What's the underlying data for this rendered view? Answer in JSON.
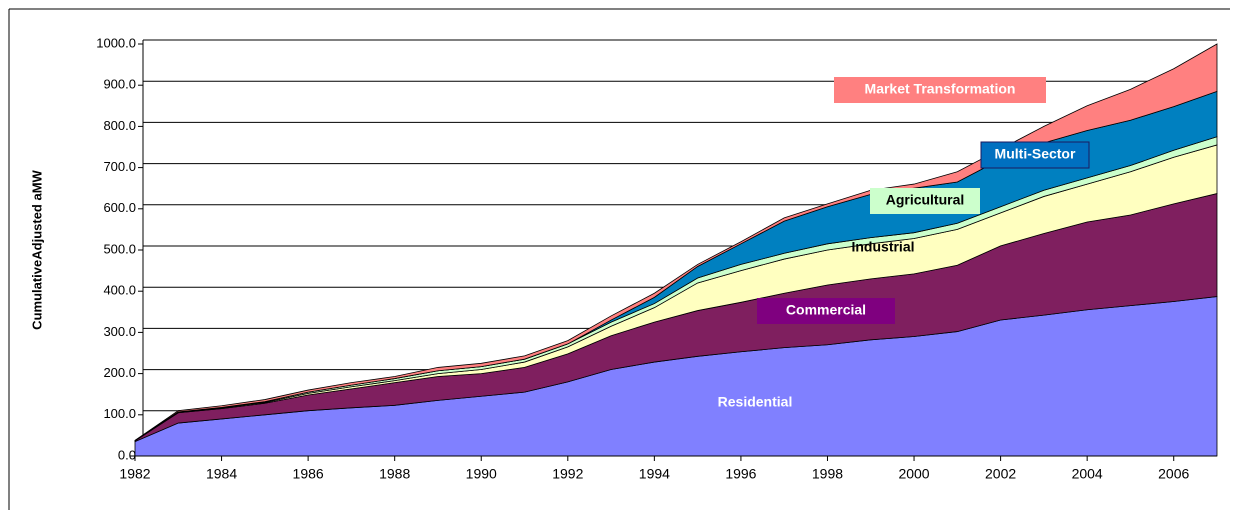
{
  "chart_data": {
    "type": "stacked_area",
    "y_label": "CumulativeAdjusted aMW",
    "x": [
      1982,
      1983,
      1984,
      1985,
      1986,
      1987,
      1988,
      1989,
      1990,
      1991,
      1992,
      1993,
      1994,
      1995,
      1996,
      1997,
      1998,
      1999,
      2000,
      2001,
      2002,
      2003,
      2004,
      2005,
      2006,
      2007
    ],
    "xlim": [
      1982,
      2007
    ],
    "xticks": [
      1982,
      1984,
      1986,
      1988,
      1990,
      1992,
      1994,
      1996,
      1998,
      2000,
      2002,
      2004,
      2006
    ],
    "ylim": [
      0,
      1000
    ],
    "yticks": [
      {
        "value": 0,
        "label": "0.0"
      },
      {
        "value": 100,
        "label": "100.0"
      },
      {
        "value": 200,
        "label": "200.0"
      },
      {
        "value": 300,
        "label": "300.0"
      },
      {
        "value": 400,
        "label": "400.0"
      },
      {
        "value": 500,
        "label": "500.0"
      },
      {
        "value": 600,
        "label": "600.0"
      },
      {
        "value": 700,
        "label": "700.0"
      },
      {
        "value": 800,
        "label": "800.0"
      },
      {
        "value": 900,
        "label": "900.0"
      },
      {
        "value": 1000,
        "label": "1000.0"
      }
    ],
    "grid": true,
    "series": [
      {
        "name": "Residential",
        "color": "#8080ff",
        "values": [
          35,
          80,
          90,
          100,
          110,
          117,
          123,
          135,
          145,
          155,
          180,
          210,
          228,
          242,
          253,
          263,
          270,
          282,
          290,
          302,
          330,
          342,
          355,
          365,
          375,
          387
        ]
      },
      {
        "name": "Commercial",
        "color": "#7f1f5f",
        "values": [
          2,
          25,
          25,
          28,
          38,
          46,
          55,
          58,
          55,
          60,
          68,
          82,
          97,
          111,
          120,
          132,
          145,
          148,
          152,
          161,
          180,
          198,
          213,
          220,
          237,
          250
        ]
      },
      {
        "name": "Industrial",
        "color": "#ffffc0",
        "values": [
          0,
          1,
          2,
          2,
          4,
          5,
          5,
          7,
          10,
          13,
          17,
          23,
          35,
          67,
          77,
          83,
          85,
          85,
          86,
          87,
          80,
          90,
          92,
          105,
          113,
          118
        ]
      },
      {
        "name": "Agricultural",
        "color": "#ccffcc",
        "values": [
          0,
          1,
          1,
          2,
          3,
          4,
          5,
          7,
          7,
          7,
          7,
          10,
          10,
          12,
          15,
          14,
          15,
          15,
          14,
          15,
          15,
          15,
          15,
          15,
          17,
          20
        ]
      },
      {
        "name": "Multi-Sector",
        "color": "#0080c0",
        "values": [
          0,
          0,
          0,
          0,
          0,
          0,
          0,
          0,
          0,
          0,
          0,
          5,
          15,
          28,
          50,
          78,
          90,
          105,
          108,
          100,
          115,
          115,
          115,
          110,
          106,
          110
        ]
      },
      {
        "name": "Market Transformation",
        "color": "#ff8080",
        "values": [
          1,
          3,
          4,
          5,
          5,
          6,
          5,
          8,
          8,
          8,
          8,
          10,
          10,
          5,
          5,
          8,
          7,
          10,
          10,
          25,
          25,
          40,
          60,
          75,
          92,
          115
        ]
      }
    ]
  }
}
